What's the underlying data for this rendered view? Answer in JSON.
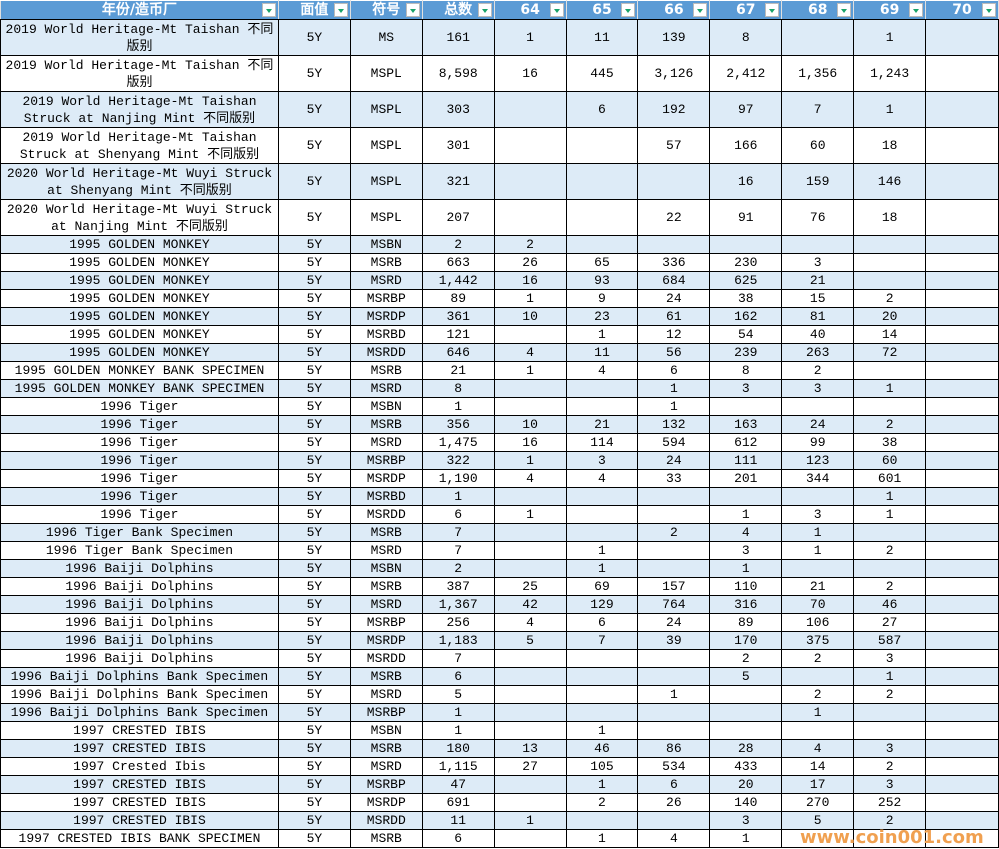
{
  "columns": [
    "年份/造币厂",
    "面值",
    "符号",
    "总数",
    "64",
    "65",
    "66",
    "67",
    "68",
    "69",
    "70"
  ],
  "rows": [
    [
      "2019 World Heritage-Mt Taishan 不同版别",
      "5Y",
      "MS",
      "161",
      "1",
      "11",
      "139",
      "8",
      "",
      "1",
      ""
    ],
    [
      "2019 World Heritage-Mt Taishan 不同版别",
      "5Y",
      "MSPL",
      "8,598",
      "16",
      "445",
      "3,126",
      "2,412",
      "1,356",
      "1,243",
      ""
    ],
    [
      "2019 World Heritage-Mt Taishan Struck at Nanjing Mint 不同版别",
      "5Y",
      "MSPL",
      "303",
      "",
      "6",
      "192",
      "97",
      "7",
      "1",
      ""
    ],
    [
      "2019 World Heritage-Mt Taishan Struck at Shenyang Mint 不同版别",
      "5Y",
      "MSPL",
      "301",
      "",
      "",
      "57",
      "166",
      "60",
      "18",
      ""
    ],
    [
      "2020 World Heritage-Mt Wuyi Struck at Shenyang Mint 不同版别",
      "5Y",
      "MSPL",
      "321",
      "",
      "",
      "",
      "16",
      "159",
      "146",
      ""
    ],
    [
      "2020 World Heritage-Mt Wuyi Struck at Nanjing Mint 不同版别",
      "5Y",
      "MSPL",
      "207",
      "",
      "",
      "22",
      "91",
      "76",
      "18",
      ""
    ],
    [
      "1995 GOLDEN MONKEY",
      "5Y",
      "MSBN",
      "2",
      "2",
      "",
      "",
      "",
      "",
      "",
      ""
    ],
    [
      "1995 GOLDEN MONKEY",
      "5Y",
      "MSRB",
      "663",
      "26",
      "65",
      "336",
      "230",
      "3",
      "",
      ""
    ],
    [
      "1995 GOLDEN MONKEY",
      "5Y",
      "MSRD",
      "1,442",
      "16",
      "93",
      "684",
      "625",
      "21",
      "",
      ""
    ],
    [
      "1995 GOLDEN MONKEY",
      "5Y",
      "MSRBP",
      "89",
      "1",
      "9",
      "24",
      "38",
      "15",
      "2",
      ""
    ],
    [
      "1995 GOLDEN MONKEY",
      "5Y",
      "MSRDP",
      "361",
      "10",
      "23",
      "61",
      "162",
      "81",
      "20",
      ""
    ],
    [
      "1995 GOLDEN MONKEY",
      "5Y",
      "MSRBD",
      "121",
      "",
      "1",
      "12",
      "54",
      "40",
      "14",
      ""
    ],
    [
      "1995 GOLDEN MONKEY",
      "5Y",
      "MSRDD",
      "646",
      "4",
      "11",
      "56",
      "239",
      "263",
      "72",
      ""
    ],
    [
      "1995 GOLDEN MONKEY BANK SPECIMEN",
      "5Y",
      "MSRB",
      "21",
      "1",
      "4",
      "6",
      "8",
      "2",
      "",
      ""
    ],
    [
      "1995 GOLDEN MONKEY BANK SPECIMEN",
      "5Y",
      "MSRD",
      "8",
      "",
      "",
      "1",
      "3",
      "3",
      "1",
      ""
    ],
    [
      "1996 Tiger",
      "5Y",
      "MSBN",
      "1",
      "",
      "",
      "1",
      "",
      "",
      "",
      ""
    ],
    [
      "1996 Tiger",
      "5Y",
      "MSRB",
      "356",
      "10",
      "21",
      "132",
      "163",
      "24",
      "2",
      ""
    ],
    [
      "1996 Tiger",
      "5Y",
      "MSRD",
      "1,475",
      "16",
      "114",
      "594",
      "612",
      "99",
      "38",
      ""
    ],
    [
      "1996 Tiger",
      "5Y",
      "MSRBP",
      "322",
      "1",
      "3",
      "24",
      "111",
      "123",
      "60",
      ""
    ],
    [
      "1996 Tiger",
      "5Y",
      "MSRDP",
      "1,190",
      "4",
      "4",
      "33",
      "201",
      "344",
      "601",
      ""
    ],
    [
      "1996 Tiger",
      "5Y",
      "MSRBD",
      "1",
      "",
      "",
      "",
      "",
      "",
      "1",
      ""
    ],
    [
      "1996 Tiger",
      "5Y",
      "MSRDD",
      "6",
      "1",
      "",
      "",
      "1",
      "3",
      "1",
      ""
    ],
    [
      "1996 Tiger Bank Specimen",
      "5Y",
      "MSRB",
      "7",
      "",
      "",
      "2",
      "4",
      "1",
      "",
      ""
    ],
    [
      "1996 Tiger Bank Specimen",
      "5Y",
      "MSRD",
      "7",
      "",
      "1",
      "",
      "3",
      "1",
      "2",
      ""
    ],
    [
      "1996 Baiji Dolphins",
      "5Y",
      "MSBN",
      "2",
      "",
      "1",
      "",
      "1",
      "",
      "",
      ""
    ],
    [
      "1996 Baiji Dolphins",
      "5Y",
      "MSRB",
      "387",
      "25",
      "69",
      "157",
      "110",
      "21",
      "2",
      ""
    ],
    [
      "1996 Baiji Dolphins",
      "5Y",
      "MSRD",
      "1,367",
      "42",
      "129",
      "764",
      "316",
      "70",
      "46",
      ""
    ],
    [
      "1996 Baiji Dolphins",
      "5Y",
      "MSRBP",
      "256",
      "4",
      "6",
      "24",
      "89",
      "106",
      "27",
      ""
    ],
    [
      "1996 Baiji Dolphins",
      "5Y",
      "MSRDP",
      "1,183",
      "5",
      "7",
      "39",
      "170",
      "375",
      "587",
      ""
    ],
    [
      "1996 Baiji Dolphins",
      "5Y",
      "MSRDD",
      "7",
      "",
      "",
      "",
      "2",
      "2",
      "3",
      ""
    ],
    [
      "1996 Baiji Dolphins Bank Specimen",
      "5Y",
      "MSRB",
      "6",
      "",
      "",
      "",
      "5",
      "",
      "1",
      ""
    ],
    [
      "1996 Baiji Dolphins Bank Specimen",
      "5Y",
      "MSRD",
      "5",
      "",
      "",
      "1",
      "",
      "2",
      "2",
      ""
    ],
    [
      "1996 Baiji Dolphins Bank Specimen",
      "5Y",
      "MSRBP",
      "1",
      "",
      "",
      "",
      "",
      "1",
      "",
      ""
    ],
    [
      "1997 CRESTED IBIS",
      "5Y",
      "MSBN",
      "1",
      "",
      "1",
      "",
      "",
      "",
      "",
      ""
    ],
    [
      "1997 CRESTED IBIS",
      "5Y",
      "MSRB",
      "180",
      "13",
      "46",
      "86",
      "28",
      "4",
      "3",
      ""
    ],
    [
      "1997 Crested Ibis",
      "5Y",
      "MSRD",
      "1,115",
      "27",
      "105",
      "534",
      "433",
      "14",
      "2",
      ""
    ],
    [
      "1997 CRESTED IBIS",
      "5Y",
      "MSRBP",
      "47",
      "",
      "1",
      "6",
      "20",
      "17",
      "3",
      ""
    ],
    [
      "1997 CRESTED IBIS",
      "5Y",
      "MSRDP",
      "691",
      "",
      "2",
      "26",
      "140",
      "270",
      "252",
      ""
    ],
    [
      "1997 CRESTED IBIS",
      "5Y",
      "MSRDD",
      "11",
      "1",
      "",
      "",
      "3",
      "5",
      "2",
      ""
    ],
    [
      "1997 CRESTED IBIS BANK SPECIMEN",
      "5Y",
      "MSRB",
      "6",
      "",
      "1",
      "4",
      "1",
      "",
      "",
      ""
    ]
  ],
  "tall_row_count": 6,
  "colors": {
    "header": "#5B9BD5",
    "band": "#DDEBF7",
    "filter_arrow": "#1AA36A",
    "watermark": "#F0A050"
  },
  "watermark": "www.coin001.com"
}
